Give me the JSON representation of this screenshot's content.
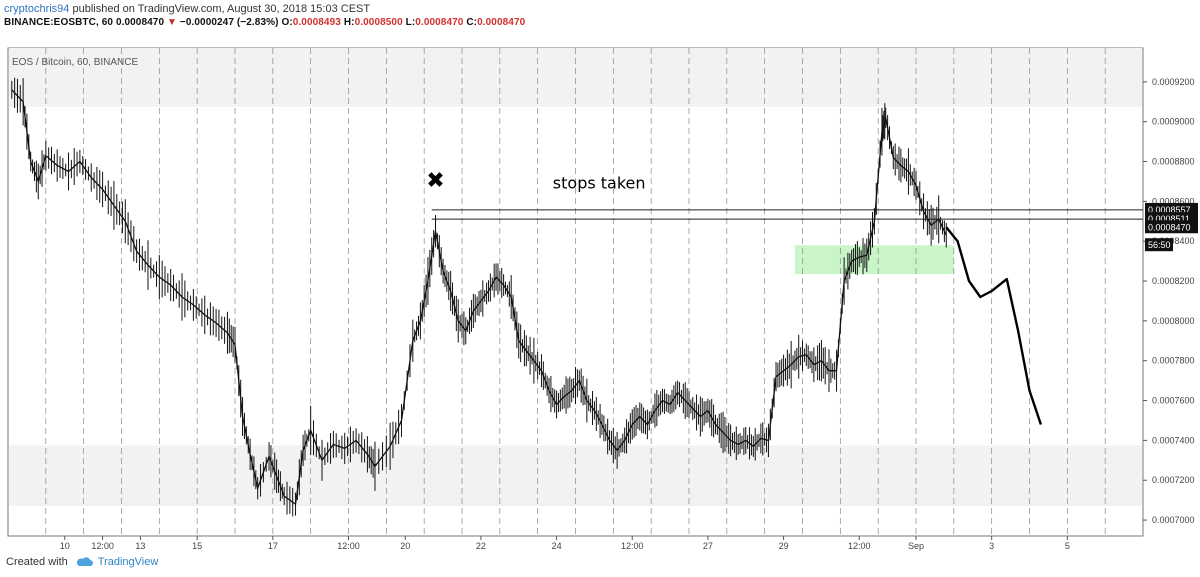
{
  "header": {
    "user": "cryptochris94",
    "published": "published on TradingView.com, August 30, 2018 15:03 CEST",
    "symbol": "BINANCE:EOSBTC, 60",
    "last": "0.0008470",
    "arrow": "▼",
    "change": "−0.0000247 (−2.83%)",
    "o_label": "O:",
    "o_value": "0.0008493",
    "h_label": "H:",
    "h_value": "0.0008500",
    "l_label": "L:",
    "l_value": "0.0008470",
    "c_label": "C:",
    "c_value": "0.0008470"
  },
  "chart_data": {
    "type": "candlestick",
    "title": "EOS / Bitcoin, 60, BINANCE",
    "y_ticks": [
      "0.0009200",
      "0.0009000",
      "0.0008800",
      "0.0008600",
      "0.0008400",
      "0.0008200",
      "0.0008000",
      "0.0007800",
      "0.0007600",
      "0.0007400",
      "0.0007200",
      "0.0007000"
    ],
    "y_tick_values": [
      0.00092,
      0.0009,
      0.00088,
      0.00086,
      0.00084,
      0.00082,
      0.0008,
      0.00078,
      0.00076,
      0.00074,
      0.00072,
      0.0007
    ],
    "ylim": [
      0.000692,
      0.000937
    ],
    "x_ticks": [
      "10",
      "12:00",
      "13",
      "15",
      "17",
      "12:00",
      "20",
      "22",
      "24",
      "12:00",
      "27",
      "29",
      "12:00",
      "Sep",
      "3",
      "5"
    ],
    "x_tick_index": [
      1.5,
      2.5,
      3.5,
      5,
      7,
      9,
      10.5,
      12.5,
      14.5,
      16.5,
      18.5,
      20.5,
      22.5,
      24,
      26,
      28
    ],
    "x_range": [
      0,
      30
    ],
    "price_labels": [
      {
        "text": "0.0008557",
        "value": 0.0008557
      },
      {
        "text": "0.0008511",
        "value": 0.0008511
      },
      {
        "text": "0.0008470",
        "value": 0.000847
      },
      {
        "text": "56:50",
        "value": 0.00084
      }
    ],
    "horizontal_lines": [
      0.0008557,
      0.0008511
    ],
    "zones": [
      {
        "from": 0.0009075,
        "to": 0.000937,
        "color": "#f2f2f2"
      },
      {
        "from": 0.000707,
        "to": 0.0007375,
        "color": "#f2f2f2"
      },
      {
        "x_from": 20.8,
        "x_to": 25,
        "from": 0.0008235,
        "to": 0.000838,
        "color": "#c9f5c9"
      }
    ],
    "series": [
      {
        "name": "",
        "points": [
          [
            0.1,
            0.000916
          ],
          [
            0.4,
            0.00091
          ],
          [
            0.6,
            0.00088
          ],
          [
            0.8,
            0.00087
          ],
          [
            1,
            0.000883
          ],
          [
            1.3,
            0.000878
          ],
          [
            1.6,
            0.000875
          ],
          [
            1.9,
            0.00088
          ],
          [
            2.2,
            0.000872
          ],
          [
            2.5,
            0.000866
          ],
          [
            2.8,
            0.000858
          ],
          [
            3.1,
            0.00085
          ],
          [
            3.4,
            0.000835
          ],
          [
            3.7,
            0.000828
          ],
          [
            4,
            0.000822
          ],
          [
            4.3,
            0.000818
          ],
          [
            4.6,
            0.000812
          ],
          [
            4.9,
            0.000808
          ],
          [
            5.2,
            0.000803
          ],
          [
            5.5,
            0.000799
          ],
          [
            5.8,
            0.000794
          ],
          [
            6,
            0.000788
          ],
          [
            6.2,
            0.000752
          ],
          [
            6.4,
            0.000733
          ],
          [
            6.6,
            0.000716
          ],
          [
            6.9,
            0.000732
          ],
          [
            7.1,
            0.000722
          ],
          [
            7.3,
            0.000712
          ],
          [
            7.6,
            0.000708
          ],
          [
            7.8,
            0.000735
          ],
          [
            8,
            0.000745
          ],
          [
            8.3,
            0.00073
          ],
          [
            8.6,
            0.000738
          ],
          [
            8.9,
            0.000736
          ],
          [
            9.2,
            0.00074
          ],
          [
            9.5,
            0.000733
          ],
          [
            9.7,
            0.000727
          ],
          [
            10.1,
            0.000737
          ],
          [
            10.4,
            0.00075
          ],
          [
            10.7,
            0.00079
          ],
          [
            10.9,
            0.0008
          ],
          [
            11.1,
            0.00082
          ],
          [
            11.3,
            0.000845
          ],
          [
            11.5,
            0.000825
          ],
          [
            11.7,
            0.000815
          ],
          [
            11.9,
            0.0008
          ],
          [
            12.1,
            0.000795
          ],
          [
            12.3,
            0.000805
          ],
          [
            12.5,
            0.00081
          ],
          [
            12.7,
            0.000815
          ],
          [
            12.9,
            0.000822
          ],
          [
            13.1,
            0.000818
          ],
          [
            13.3,
            0.000812
          ],
          [
            13.5,
            0.00079
          ],
          [
            13.7,
            0.000785
          ],
          [
            13.9,
            0.00078
          ],
          [
            14.1,
            0.000775
          ],
          [
            14.3,
            0.000765
          ],
          [
            14.5,
            0.000758
          ],
          [
            14.7,
            0.000762
          ],
          [
            14.9,
            0.000765
          ],
          [
            15.1,
            0.00077
          ],
          [
            15.3,
            0.00076
          ],
          [
            15.5,
            0.000755
          ],
          [
            15.7,
            0.000748
          ],
          [
            15.9,
            0.00074
          ],
          [
            16.1,
            0.000735
          ],
          [
            16.3,
            0.00074
          ],
          [
            16.5,
            0.000748
          ],
          [
            16.7,
            0.000752
          ],
          [
            16.9,
            0.000748
          ],
          [
            17.1,
            0.000755
          ],
          [
            17.3,
            0.00076
          ],
          [
            17.5,
            0.000758
          ],
          [
            17.7,
            0.000764
          ],
          [
            17.9,
            0.00076
          ],
          [
            18.1,
            0.000756
          ],
          [
            18.3,
            0.000752
          ],
          [
            18.5,
            0.000755
          ],
          [
            18.7,
            0.000748
          ],
          [
            18.9,
            0.000744
          ],
          [
            19.1,
            0.00074
          ],
          [
            19.3,
            0.000738
          ],
          [
            19.5,
            0.00074
          ],
          [
            19.7,
            0.000737
          ],
          [
            19.9,
            0.000741
          ],
          [
            20.1,
            0.00074
          ],
          [
            20.3,
            0.000772
          ],
          [
            20.5,
            0.000775
          ],
          [
            20.7,
            0.000778
          ],
          [
            20.9,
            0.000782
          ],
          [
            21.1,
            0.000783
          ],
          [
            21.3,
            0.000778
          ],
          [
            21.5,
            0.00078
          ],
          [
            21.7,
            0.000775
          ],
          [
            21.9,
            0.000775
          ],
          [
            22.1,
            0.00082
          ],
          [
            22.3,
            0.00083
          ],
          [
            22.5,
            0.000832
          ],
          [
            22.7,
            0.000833
          ],
          [
            22.9,
            0.00085
          ],
          [
            23.1,
            0.000895
          ],
          [
            23.2,
            0.000902
          ],
          [
            23.4,
            0.000882
          ],
          [
            23.6,
            0.000878
          ],
          [
            23.8,
            0.000875
          ],
          [
            24,
            0.000868
          ],
          [
            24.2,
            0.000855
          ],
          [
            24.4,
            0.000848
          ],
          [
            24.6,
            0.000851
          ],
          [
            24.8,
            0.000843
          ]
        ]
      }
    ],
    "projection": [
      [
        24.8,
        0.000847
      ],
      [
        25.1,
        0.00084
      ],
      [
        25.4,
        0.00082
      ],
      [
        25.7,
        0.000812
      ],
      [
        26,
        0.000815
      ],
      [
        26.4,
        0.000821
      ],
      [
        26.7,
        0.000795
      ],
      [
        27,
        0.000765
      ],
      [
        27.3,
        0.000748
      ]
    ],
    "annotations": [
      {
        "text": "stops taken",
        "x": 14.4,
        "y": 0.0008665
      },
      {
        "text": "✖",
        "x": 11.3,
        "y": 0.000867
      }
    ]
  },
  "footer": {
    "created": "Created with",
    "brand": "TradingView"
  }
}
